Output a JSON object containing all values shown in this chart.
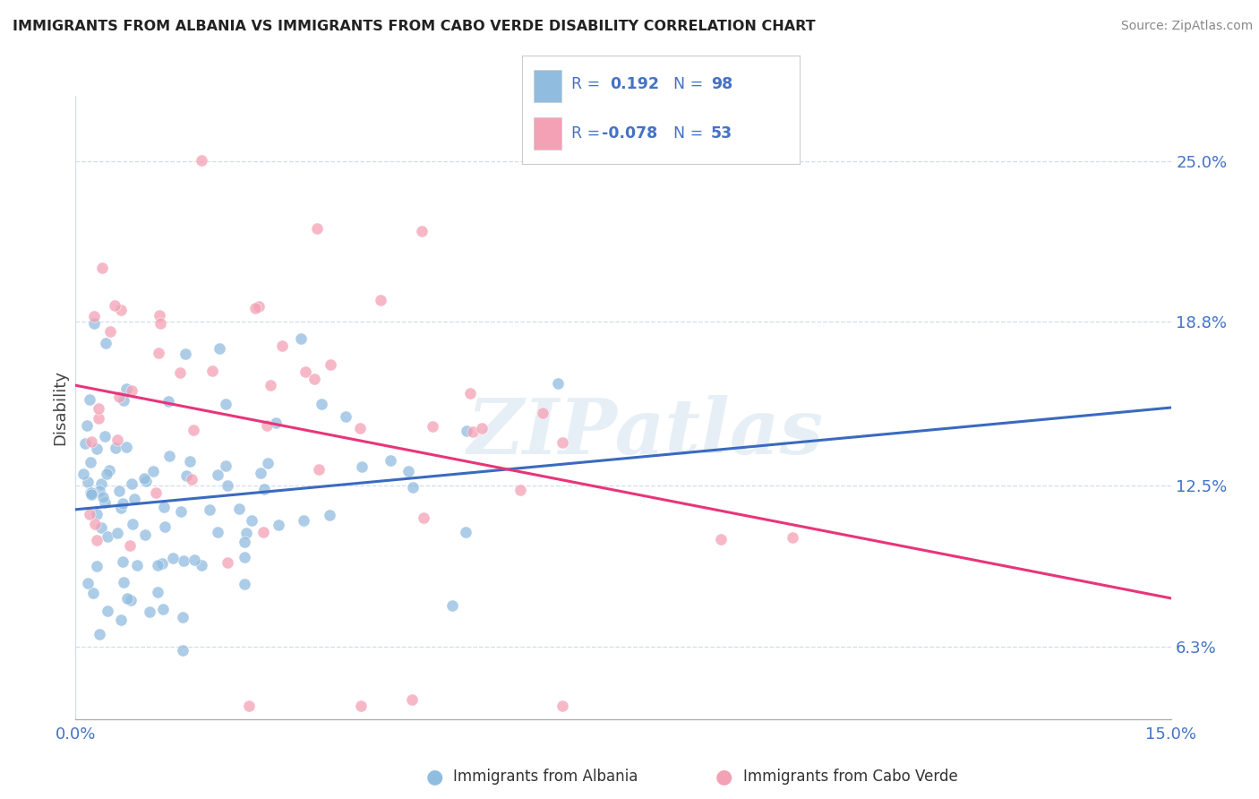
{
  "title": "IMMIGRANTS FROM ALBANIA VS IMMIGRANTS FROM CABO VERDE DISABILITY CORRELATION CHART",
  "source": "Source: ZipAtlas.com",
  "ylabel": "Disability",
  "xmin": 0.0,
  "xmax": 0.15,
  "ymin": 0.035,
  "ymax": 0.275,
  "ytick_vals": [
    0.063,
    0.125,
    0.188,
    0.25
  ],
  "ytick_labels": [
    "6.3%",
    "12.5%",
    "18.8%",
    "25.0%"
  ],
  "xtick_labels": [
    "0.0%",
    "15.0%"
  ],
  "albania_color": "#90bce0",
  "cabo_verde_color": "#f4a0b5",
  "albania_line_color": "#3a6abf",
  "cabo_verde_line_color": "#e8357a",
  "blue_text": "#4472c4",
  "grid_color": "#d5dce8",
  "watermark_color": "#7aaad0",
  "watermark_alpha": 0.18,
  "watermark_text": "ZIPatlas",
  "legend_text_color": "#4472c4"
}
